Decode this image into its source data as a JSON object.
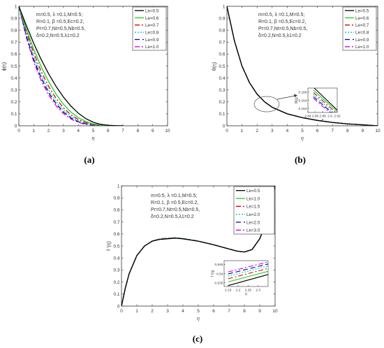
{
  "panel_labels": [
    "(a)",
    "(b)",
    "(c)"
  ],
  "param_text": [
    "m=0.5, λ =0.1,M=0.5;",
    "R=0.1, β =0.5,Ec=0.2,",
    "Pr=0.7,Nt=0.5,Nb=0.5,",
    "δ=0.2,N=0.5,λ1=0.2"
  ],
  "colors": [
    "#000000",
    "#22cc22",
    "#dd0000",
    "#00cccc",
    "#000099",
    "#dd00dd"
  ],
  "dashes": [
    "",
    "",
    "7,3,2,3",
    "2,2",
    "7,4",
    "7,3,2,3"
  ],
  "chart_data": [
    {
      "id": "a",
      "type": "line",
      "ylabel": "ϕ(η)",
      "xlabel": "η",
      "xlim": [
        0,
        10
      ],
      "ylim": [
        0,
        1
      ],
      "xticks": [
        0,
        1,
        2,
        3,
        4,
        5,
        6,
        7,
        8,
        9,
        10
      ],
      "yticks": [
        0,
        0.1,
        0.2,
        0.3,
        0.4,
        0.5,
        0.6,
        0.7,
        0.8,
        0.9,
        1
      ],
      "ytick_labels": [
        "0",
        "0.1",
        "0.2",
        "0.3",
        "0.4",
        "0.5",
        "0.6",
        "0.7",
        "0.8",
        "0.9",
        "1"
      ],
      "grid": false,
      "legend_position": "top-right",
      "x": [
        0,
        0.5,
        1,
        1.5,
        2,
        2.5,
        3,
        3.5,
        4,
        4.5,
        5,
        5.5,
        6,
        6.5,
        7
      ],
      "series": [
        {
          "name": "Le=0.5",
          "values": [
            1.0,
            0.84,
            0.69,
            0.555,
            0.435,
            0.33,
            0.24,
            0.165,
            0.105,
            0.06,
            0.03,
            0.012,
            0.004,
            0.001,
            0
          ]
        },
        {
          "name": "Le=0.6",
          "values": [
            1.0,
            0.81,
            0.64,
            0.495,
            0.37,
            0.265,
            0.18,
            0.115,
            0.068,
            0.036,
            0.016,
            0.006,
            0.002,
            0,
            0
          ]
        },
        {
          "name": "Le=0.7",
          "values": [
            1.0,
            0.79,
            0.61,
            0.455,
            0.33,
            0.23,
            0.15,
            0.092,
            0.052,
            0.026,
            0.011,
            0.004,
            0.001,
            0,
            0
          ]
        },
        {
          "name": "Le=0.8",
          "values": [
            1.0,
            0.77,
            0.58,
            0.425,
            0.3,
            0.205,
            0.13,
            0.078,
            0.042,
            0.02,
            0.008,
            0.003,
            0.001,
            0,
            0
          ]
        },
        {
          "name": "Le=0.9",
          "values": [
            1.0,
            0.755,
            0.555,
            0.4,
            0.278,
            0.185,
            0.115,
            0.066,
            0.034,
            0.016,
            0.006,
            0.002,
            0,
            0,
            0
          ]
        },
        {
          "name": "Le=1.0",
          "values": [
            1.0,
            0.74,
            0.535,
            0.378,
            0.258,
            0.168,
            0.102,
            0.057,
            0.028,
            0.012,
            0.005,
            0.001,
            0,
            0,
            0
          ]
        }
      ]
    },
    {
      "id": "b",
      "type": "line",
      "ylabel": "θ(η)",
      "xlabel": "η",
      "xlim": [
        0,
        10
      ],
      "ylim": [
        0,
        1
      ],
      "xticks": [
        0,
        1,
        2,
        3,
        4,
        5,
        6,
        7,
        8,
        9,
        10
      ],
      "yticks": [
        0,
        0.1,
        0.2,
        0.3,
        0.4,
        0.5,
        0.6,
        0.7,
        0.8,
        0.9,
        1
      ],
      "ytick_labels": [
        "0",
        "0.1",
        "0.2",
        "0.3",
        "0.4",
        "0.5",
        "0.6",
        "0.7",
        "0.8",
        "0.9",
        "1"
      ],
      "grid": false,
      "legend_position": "top-right",
      "x": [
        0,
        0.5,
        1,
        1.5,
        2,
        2.5,
        3,
        4,
        5,
        6,
        7,
        8,
        9,
        10
      ],
      "series": [
        {
          "name": "Le=0.5",
          "values": [
            1.0,
            0.71,
            0.5,
            0.36,
            0.265,
            0.2,
            0.155,
            0.1,
            0.068,
            0.045,
            0.028,
            0.016,
            0.008,
            0
          ]
        },
        {
          "name": "Le=0.6",
          "values": [
            1.0,
            0.71,
            0.5,
            0.36,
            0.265,
            0.2,
            0.155,
            0.1,
            0.068,
            0.045,
            0.028,
            0.016,
            0.008,
            0
          ]
        },
        {
          "name": "Le=0.7",
          "values": [
            1.0,
            0.71,
            0.5,
            0.36,
            0.265,
            0.2,
            0.155,
            0.1,
            0.068,
            0.045,
            0.028,
            0.016,
            0.008,
            0
          ]
        },
        {
          "name": "Le=0.8",
          "values": [
            1.0,
            0.71,
            0.5,
            0.36,
            0.265,
            0.2,
            0.155,
            0.1,
            0.068,
            0.045,
            0.028,
            0.016,
            0.008,
            0
          ]
        },
        {
          "name": "Le=0.9",
          "values": [
            1.0,
            0.71,
            0.5,
            0.36,
            0.265,
            0.2,
            0.155,
            0.1,
            0.068,
            0.045,
            0.028,
            0.016,
            0.008,
            0
          ]
        },
        {
          "name": "Le=1.0",
          "values": [
            1.0,
            0.71,
            0.5,
            0.36,
            0.265,
            0.2,
            0.155,
            0.1,
            0.068,
            0.045,
            0.028,
            0.016,
            0.008,
            0
          ]
        }
      ],
      "inset": {
        "ylabel": "θ(η)",
        "xlabel": "η",
        "xlim": [
          2.84,
          2.92
        ],
        "ylim": [
          0.161,
          0.167
        ],
        "xticks": [
          2.84,
          2.86,
          2.88,
          2.9,
          2.92
        ],
        "xtick_labels": [
          "2.84",
          "2.86",
          "2.88",
          "2.9",
          "2.92"
        ],
        "yticks": [
          0.162,
          0.164,
          0.166
        ],
        "ytick_labels": [
          "0.162",
          "0.164",
          "0.166"
        ],
        "x": [
          2.855,
          2.92
        ],
        "series": [
          {
            "name": "Le=0.5",
            "values": [
              0.1672,
              0.1616
            ]
          },
          {
            "name": "Le=0.6",
            "values": [
              0.1665,
              0.1612
            ]
          },
          {
            "name": "Le=0.7",
            "values": [
              0.1659,
              0.1607
            ]
          },
          {
            "name": "Le=0.8",
            "values": [
              0.1654,
              0.1602
            ]
          },
          {
            "name": "Le=0.9",
            "values": [
              0.1649,
              0.1598
            ]
          },
          {
            "name": "Le=1.0",
            "values": [
              0.1645,
              0.1594
            ]
          }
        ]
      }
    },
    {
      "id": "c",
      "type": "line",
      "ylabel": "f '(η)",
      "xlabel": "η",
      "xlim": [
        0,
        10
      ],
      "ylim": [
        0,
        1
      ],
      "xticks": [
        0,
        1,
        2,
        3,
        4,
        5,
        6,
        7,
        8,
        9,
        10
      ],
      "yticks": [
        0,
        0.1,
        0.2,
        0.3,
        0.4,
        0.5,
        0.6,
        0.7,
        0.8,
        0.9,
        1
      ],
      "ytick_labels": [
        "0",
        "0.1",
        "0.2",
        "0.3",
        "0.4",
        "0.5",
        "0.6",
        "0.7",
        "0.8",
        "0.9",
        "1"
      ],
      "grid": false,
      "legend_position": "top-right",
      "x": [
        0,
        0.25,
        0.5,
        1,
        1.5,
        2,
        2.5,
        3,
        3.5,
        4,
        5,
        6,
        7,
        7.5,
        8,
        8.5,
        9,
        9.5,
        10
      ],
      "series": [
        {
          "name": "Le=0.5",
          "values": [
            0,
            0.15,
            0.27,
            0.42,
            0.5,
            0.54,
            0.555,
            0.56,
            0.565,
            0.56,
            0.54,
            0.51,
            0.475,
            0.458,
            0.45,
            0.47,
            0.56,
            0.72,
            1.0
          ]
        },
        {
          "name": "Le=1.0",
          "values": [
            0,
            0.15,
            0.27,
            0.42,
            0.5,
            0.54,
            0.556,
            0.561,
            0.566,
            0.56,
            0.54,
            0.51,
            0.475,
            0.458,
            0.45,
            0.47,
            0.56,
            0.72,
            1.0
          ]
        },
        {
          "name": "Le=1.5",
          "values": [
            0,
            0.15,
            0.27,
            0.42,
            0.5,
            0.54,
            0.557,
            0.562,
            0.566,
            0.56,
            0.54,
            0.51,
            0.475,
            0.458,
            0.45,
            0.47,
            0.56,
            0.72,
            1.0
          ]
        },
        {
          "name": "Le=2.0",
          "values": [
            0,
            0.15,
            0.27,
            0.42,
            0.5,
            0.541,
            0.558,
            0.563,
            0.567,
            0.561,
            0.54,
            0.51,
            0.475,
            0.458,
            0.45,
            0.47,
            0.56,
            0.72,
            1.0
          ]
        },
        {
          "name": "Le=2.5",
          "values": [
            0,
            0.15,
            0.27,
            0.42,
            0.5,
            0.541,
            0.558,
            0.563,
            0.567,
            0.561,
            0.541,
            0.51,
            0.475,
            0.458,
            0.45,
            0.47,
            0.56,
            0.72,
            1.0
          ]
        },
        {
          "name": "Le=3.0",
          "values": [
            0,
            0.15,
            0.27,
            0.42,
            0.5,
            0.541,
            0.559,
            0.564,
            0.568,
            0.562,
            0.541,
            0.51,
            0.475,
            0.458,
            0.45,
            0.47,
            0.56,
            0.72,
            1.0
          ]
        }
      ],
      "inset": {
        "ylabel": "f '(η)",
        "xlabel": "η",
        "xlim": [
          2.13,
          2.35
        ],
        "ylim": [
          0.533,
          0.547
        ],
        "xticks": [
          2.15,
          2.2,
          2.25,
          2.3
        ],
        "xtick_labels": [
          "2.15",
          "2.2",
          "2.25",
          "2.3"
        ],
        "yticks": [
          0.535,
          0.54,
          0.545
        ],
        "ytick_labels": [
          "0.535",
          "0.54",
          "0.545"
        ],
        "x": [
          2.15,
          2.35
        ],
        "series": [
          {
            "name": "Le=0.5",
            "values": [
              0.5335,
              0.5395
            ]
          },
          {
            "name": "Le=1.0",
            "values": [
              0.5355,
              0.5412
            ]
          },
          {
            "name": "Le=1.5",
            "values": [
              0.5372,
              0.5428
            ]
          },
          {
            "name": "Le=2.0",
            "values": [
              0.5386,
              0.5441
            ]
          },
          {
            "name": "Le=2.5",
            "values": [
              0.5398,
              0.5452
            ]
          },
          {
            "name": "Le=3.0",
            "values": [
              0.5409,
              0.5463
            ]
          }
        ]
      }
    }
  ]
}
